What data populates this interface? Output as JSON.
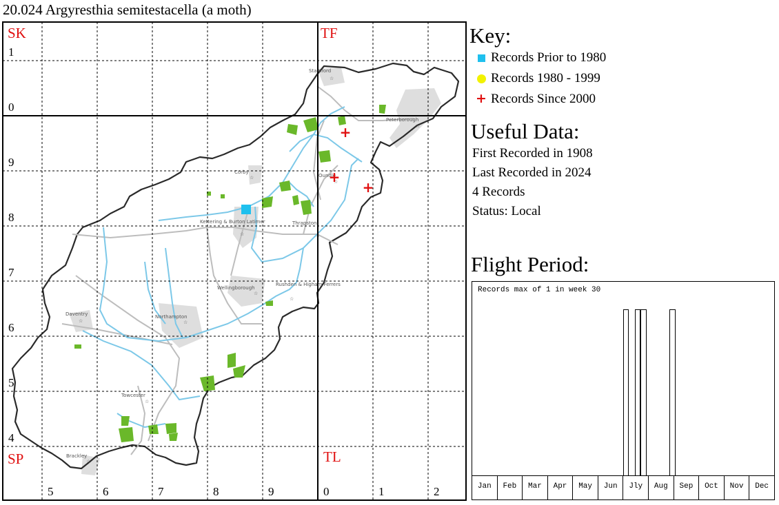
{
  "title": "20.024 Argyresthia semitestacella (a moth)",
  "map": {
    "squares": {
      "sk": "SK",
      "tf": "TF",
      "sp": "SP",
      "tl": "TL"
    },
    "northings": [
      "1",
      "0",
      "9",
      "8",
      "7",
      "6",
      "5",
      "4"
    ],
    "eastings": [
      "5",
      "6",
      "7",
      "8",
      "9",
      "0",
      "1",
      "2"
    ],
    "towns": [
      "Stamford",
      "Peterborough",
      "Corby",
      "Oundle",
      "Kettering & Burton Latimer",
      "Thrapston",
      "Wellingborough",
      "Rushden & Higham Ferrers",
      "Daventry",
      "Northampton",
      "Towcester",
      "Brackley"
    ],
    "colors": {
      "prior_1980": "#1fc0ee",
      "1980_1999": "#f2f200",
      "since_2000": "#e01010",
      "woodland": "#6ab82a",
      "river": "#7cc8e8",
      "roads": "#b5b5b5",
      "urban": "#d6d6d6"
    }
  },
  "key": {
    "heading": "Key:",
    "items": [
      {
        "icon": "blue-square-icon",
        "label": "Records Prior to 1980"
      },
      {
        "icon": "yellow-circle-icon",
        "label": "Records 1980 - 1999"
      },
      {
        "icon": "red-cross-icon",
        "label": "Records Since 2000"
      }
    ]
  },
  "useful_data": {
    "heading": "Useful Data:",
    "first": "First Recorded in 1908",
    "last": "Last Recorded in 2024",
    "count": "4 Records",
    "status": "Status: Local"
  },
  "flight": {
    "heading": "Flight Period:",
    "note": "Records max of 1 in week 30",
    "months": [
      "Jan",
      "Feb",
      "Mar",
      "Apr",
      "May",
      "Jun",
      "Jly",
      "Aug",
      "Sep",
      "Oct",
      "Nov",
      "Dec"
    ],
    "weeks_with_records": [
      27,
      29,
      30,
      35
    ],
    "max_records": 1
  }
}
